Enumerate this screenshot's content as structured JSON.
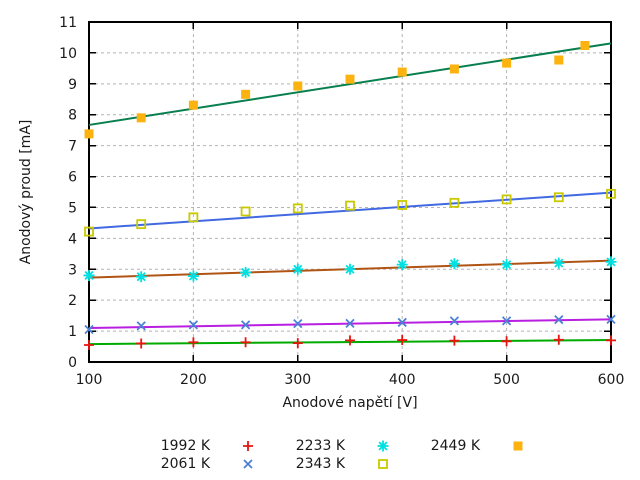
{
  "chart_data": {
    "type": "scatter",
    "title": "",
    "xlabel": "Anodové napětí [V]",
    "ylabel": "Anodový proud [mA]",
    "xlim": [
      100,
      600
    ],
    "ylim": [
      0,
      11
    ],
    "xticks": [
      100,
      200,
      300,
      400,
      500,
      600
    ],
    "yticks": [
      0,
      1,
      2,
      3,
      4,
      5,
      6,
      7,
      8,
      9,
      10,
      11
    ],
    "grid_x": [
      200,
      300,
      400,
      500
    ],
    "grid_y": [
      1,
      2,
      3,
      4,
      5,
      6,
      7,
      8,
      9,
      10
    ],
    "grid_on": true,
    "legend_position": "below-plot",
    "colors": {
      "background": "#ffffff",
      "axis": "#000000",
      "grid": "#b4b4b4",
      "text": "#1a1a1a"
    },
    "series": [
      {
        "name": "1992 K",
        "marker": "plus",
        "marker_color": "#e8140e",
        "line_color": "#00ab00",
        "points": [
          [
            100,
            0.55
          ],
          [
            150,
            0.6
          ],
          [
            200,
            0.64
          ],
          [
            250,
            0.64
          ],
          [
            300,
            0.61
          ],
          [
            350,
            0.7
          ],
          [
            400,
            0.71
          ],
          [
            450,
            0.69
          ],
          [
            500,
            0.67
          ],
          [
            550,
            0.72
          ],
          [
            600,
            0.7
          ]
        ],
        "fit": [
          [
            100,
            0.58
          ],
          [
            600,
            0.71
          ]
        ]
      },
      {
        "name": "2061 K",
        "marker": "cross",
        "marker_color": "#4b80d5",
        "line_color": "#b81fe0",
        "points": [
          [
            100,
            1.05
          ],
          [
            150,
            1.17
          ],
          [
            200,
            1.2
          ],
          [
            250,
            1.2
          ],
          [
            300,
            1.24
          ],
          [
            350,
            1.25
          ],
          [
            400,
            1.28
          ],
          [
            450,
            1.33
          ],
          [
            500,
            1.33
          ],
          [
            550,
            1.37
          ],
          [
            600,
            1.38
          ]
        ],
        "fit": [
          [
            100,
            1.1
          ],
          [
            600,
            1.38
          ]
        ]
      },
      {
        "name": "2233 K",
        "marker": "asterisk",
        "marker_color": "#00e0e0",
        "line_color": "#b05414",
        "points": [
          [
            100,
            2.8
          ],
          [
            150,
            2.76
          ],
          [
            200,
            2.78
          ],
          [
            250,
            2.9
          ],
          [
            300,
            3.0
          ],
          [
            350,
            3.0
          ],
          [
            400,
            3.15
          ],
          [
            450,
            3.18
          ],
          [
            500,
            3.15
          ],
          [
            550,
            3.2
          ],
          [
            600,
            3.24
          ]
        ],
        "fit": [
          [
            100,
            2.73
          ],
          [
            600,
            3.28
          ]
        ]
      },
      {
        "name": "2343 K",
        "marker": "open-square",
        "marker_color": "#c9c900",
        "line_color": "#4169e1",
        "points": [
          [
            100,
            4.22
          ],
          [
            150,
            4.46
          ],
          [
            200,
            4.68
          ],
          [
            250,
            4.87
          ],
          [
            300,
            4.97
          ],
          [
            350,
            5.06
          ],
          [
            400,
            5.08
          ],
          [
            450,
            5.15
          ],
          [
            500,
            5.26
          ],
          [
            550,
            5.33
          ],
          [
            600,
            5.44
          ]
        ],
        "fit": [
          [
            100,
            4.32
          ],
          [
            600,
            5.48
          ]
        ]
      },
      {
        "name": "2449 K",
        "marker": "filled-square",
        "marker_color": "#fcb30f",
        "line_color": "#077f4e",
        "points": [
          [
            100,
            7.38
          ],
          [
            150,
            7.9
          ],
          [
            200,
            8.31
          ],
          [
            250,
            8.66
          ],
          [
            300,
            8.93
          ],
          [
            350,
            9.15
          ],
          [
            400,
            9.38
          ],
          [
            450,
            9.48
          ],
          [
            500,
            9.67
          ],
          [
            550,
            9.77
          ],
          [
            575,
            10.24
          ]
        ],
        "fit": [
          [
            100,
            7.67
          ],
          [
            600,
            10.31
          ]
        ]
      }
    ],
    "legend": {
      "rows": [
        [
          "1992 K",
          "2233 K",
          "2449 K"
        ],
        [
          "2061 K",
          "2343 K"
        ]
      ]
    }
  }
}
